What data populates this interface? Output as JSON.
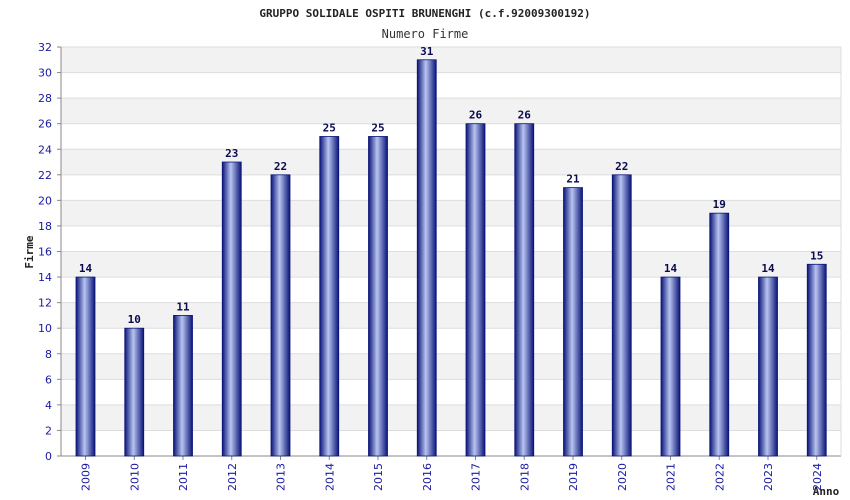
{
  "chart_data": {
    "type": "bar",
    "title": "GRUPPO SOLIDALE OSPITI BRUNENGHI (c.f.92009300192)",
    "subtitle": "Numero Firme",
    "xlabel": "Anno",
    "ylabel": "Firme",
    "categories": [
      "2009",
      "2010",
      "2011",
      "2012",
      "2013",
      "2014",
      "2015",
      "2016",
      "2017",
      "2018",
      "2019",
      "2020",
      "2021",
      "2022",
      "2023",
      "2024"
    ],
    "values": [
      14,
      10,
      11,
      23,
      22,
      25,
      25,
      31,
      26,
      26,
      21,
      22,
      14,
      19,
      14,
      15
    ],
    "ylim": [
      0,
      32
    ],
    "yticks": [
      0,
      2,
      4,
      6,
      8,
      10,
      12,
      14,
      16,
      18,
      20,
      22,
      24,
      26,
      28,
      30,
      32
    ],
    "grid": true,
    "legend": "none",
    "colors": {
      "bar_dark": "#0a1478",
      "bar_light": "#b8c4f0",
      "band_alt": "#f2f2f2",
      "grid": "#dddddd",
      "tick_text": "#1a1aa0"
    }
  }
}
